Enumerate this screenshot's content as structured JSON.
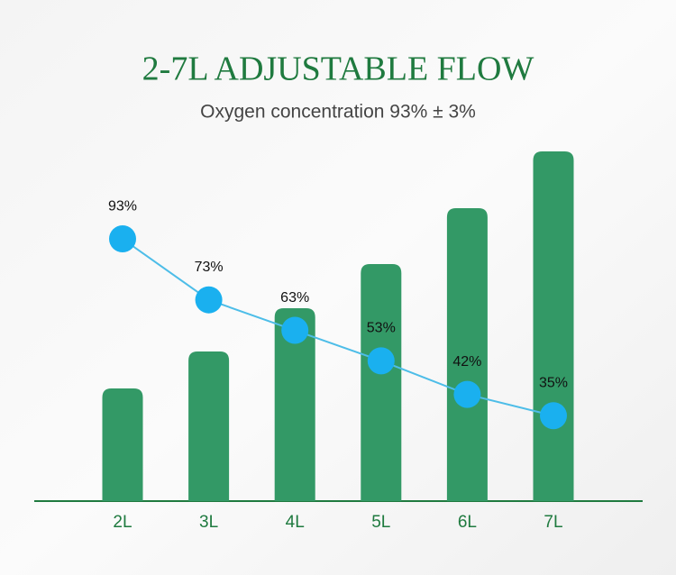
{
  "chart_data": {
    "type": "bar-line",
    "title": "2-7L ADJUSTABLE FLOW",
    "subtitle": "Oxygen concentration 93% ± 3%",
    "categories": [
      "2L",
      "3L",
      "4L",
      "5L",
      "6L",
      "7L"
    ],
    "ylim": [
      0,
      406
    ],
    "y2lim": [
      7,
      127
    ],
    "series": [
      {
        "type": "bar",
        "color": "#339966",
        "values": [
          125,
          166,
          214,
          263,
          325,
          388
        ]
      },
      {
        "type": "line",
        "axis": "y2",
        "color": "#4dbde8",
        "marker_color": "#1ab0ef",
        "values": [
          93,
          73,
          63,
          53,
          42,
          35
        ],
        "value_labels": [
          "93%",
          "73%",
          "63%",
          "53%",
          "42%",
          "35%"
        ]
      }
    ]
  }
}
